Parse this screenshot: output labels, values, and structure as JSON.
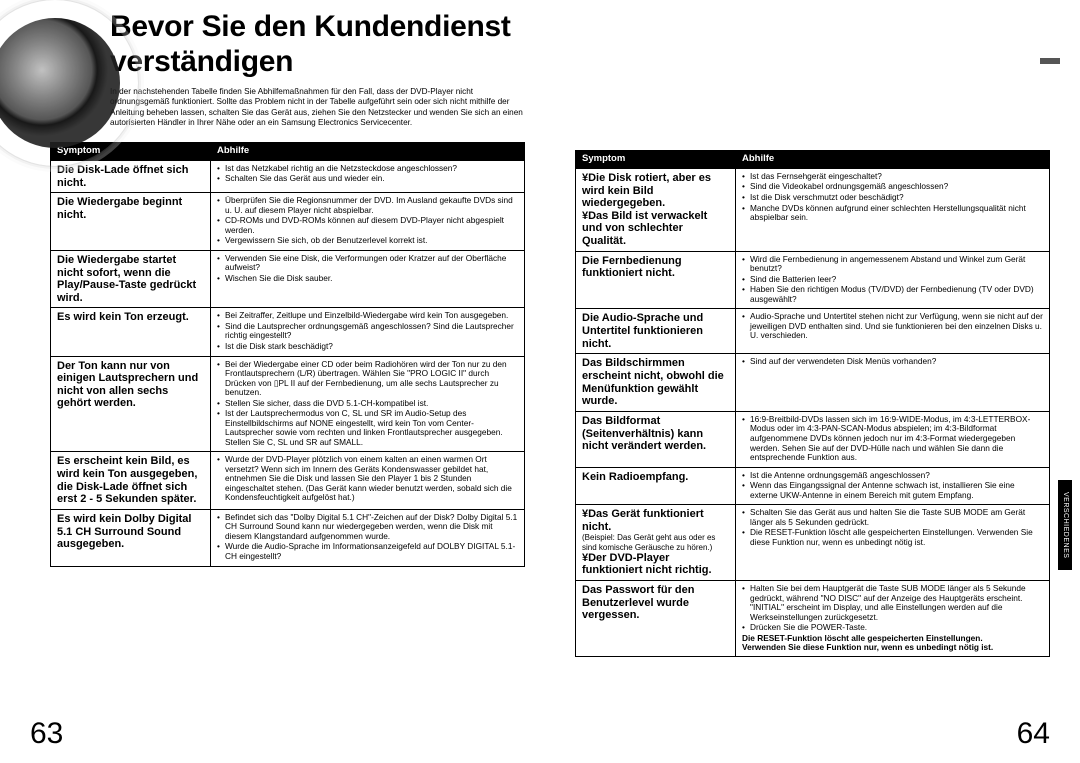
{
  "title": "Bevor Sie den Kundendienst verständigen",
  "intro": "In der nachstehenden Tabelle finden Sie Abhilfemaßnahmen für den Fall, dass der DVD-Player nicht ordnungsgemäß funktioniert. Sollte das Problem nicht in der Tabelle aufgeführt sein oder sich nicht mithilfe der Anleitung beheben lassen, schalten Sie das Gerät aus, ziehen Sie den Netzstecker und wenden Sie sich an einen autorisierten Händler in Ihrer Nähe oder an ein Samsung Electronics Servicecenter.",
  "headers": {
    "symptom": "Symptom",
    "remedy": "Abhilfe"
  },
  "pageLeft": "63",
  "pageRight": "64",
  "sideTab": "VERSCHIEDENES",
  "left": [
    {
      "sym": "Die Disk-Lade öffnet sich nicht.",
      "rem": [
        "Ist das Netzkabel richtig an die Netzsteckdose angeschlossen?",
        "Schalten Sie das Gerät aus und wieder ein."
      ]
    },
    {
      "sym": "Die Wiedergabe beginnt nicht.",
      "rem": [
        "Überprüfen Sie die Regionsnummer der DVD. Im Ausland gekaufte DVDs sind u. U. auf diesem Player nicht abspielbar.",
        "CD-ROMs und DVD-ROMs können auf diesem DVD-Player nicht abgespielt werden.",
        "Vergewissern Sie sich, ob der Benutzerlevel korrekt ist."
      ]
    },
    {
      "sym": "Die Wiedergabe startet nicht sofort, wenn die Play/Pause-Taste gedrückt wird.",
      "rem": [
        "Verwenden Sie eine Disk, die Verformungen oder Kratzer auf der Oberfläche aufweist?",
        "Wischen Sie die Disk sauber."
      ]
    },
    {
      "sym": "Es wird kein Ton erzeugt.",
      "rem": [
        "Bei Zeitraffer, Zeitlupe und Einzelbild-Wiedergabe wird kein Ton ausgegeben.",
        "Sind die Lautsprecher ordnungsgemäß angeschlossen? Sind die Lautsprecher richtig eingestellt?",
        "Ist die Disk stark beschädigt?"
      ]
    },
    {
      "sym": "Der Ton kann nur von einigen Lautsprechern und nicht von allen sechs gehört werden.",
      "rem": [
        "Bei der Wiedergabe einer CD oder beim Radiohören wird der Ton nur zu den Frontlautsprechern (L/R) übertragen. Wählen Sie \"PRO LOGIC II\" durch Drücken von ▯PL II auf der Fernbedienung, um alle sechs Lautsprecher zu benutzen.",
        "Stellen Sie sicher, dass die DVD 5.1-CH-kompatibel ist.",
        "Ist der Lautsprechermodus von C, SL und SR im Audio-Setup des Einstellbildschirms auf NONE eingestellt, wird kein Ton vom Center-Lautsprecher sowie vom rechten und linken Frontlautsprecher ausgegeben. Stellen Sie C, SL und SR auf SMALL."
      ]
    },
    {
      "sym": "Es erscheint kein Bild, es wird kein Ton ausgegeben, die Disk-Lade öffnet sich erst 2 - 5 Sekunden später.",
      "rem": [
        "Wurde der DVD-Player plötzlich von einem kalten an einen warmen Ort versetzt? Wenn sich im Innern des Geräts Kondenswasser gebildet hat, entnehmen Sie die Disk und lassen Sie den Player 1 bis 2 Stunden eingeschaltet stehen. (Das Gerät kann wieder benutzt werden, sobald sich die Kondensfeuchtigkeit aufgelöst hat.)"
      ]
    },
    {
      "sym": "Es wird kein Dolby Digital 5.1 CH Surround Sound ausgegeben.",
      "rem": [
        "Befindet sich das \"Dolby Digital 5.1 CH\"-Zeichen auf der Disk? Dolby Digital 5.1 CH Surround Sound kann nur wiedergegeben werden, wenn die Disk mit diesem Klangstandard aufgenommen wurde.",
        "Wurde die Audio-Sprache im Informationsanzeigefeld auf DOLBY DIGITAL 5.1-CH eingestellt?"
      ]
    }
  ],
  "right": [
    {
      "sym": "¥Die Disk rotiert, aber es wird kein Bild wiedergegeben.\n¥Das Bild ist verwackelt und von schlechter Qualität.",
      "rem": [
        "Ist das Fernsehgerät eingeschaltet?",
        "Sind die Videokabel ordnungsgemäß angeschlossen?",
        "Ist die Disk verschmutzt oder beschädigt?",
        "Manche DVDs können aufgrund einer schlechten Herstellungsqualität nicht abspielbar sein."
      ]
    },
    {
      "sym": "Die Fernbedienung funktioniert nicht.",
      "rem": [
        "Wird die Fernbedienung in angemessenem Abstand und Winkel zum Gerät benutzt?",
        "Sind die Batterien leer?",
        "Haben Sie den richtigen Modus (TV/DVD) der Fernbedienung (TV oder DVD) ausgewählt?"
      ]
    },
    {
      "sym": "Die Audio-Sprache und Untertitel funktionieren nicht.",
      "rem": [
        "Audio-Sprache und Untertitel stehen nicht zur Verfügung, wenn sie nicht auf der jeweiligen DVD enthalten sind. Und sie funktionieren bei den einzelnen Disks u. U. verschieden."
      ]
    },
    {
      "sym": "Das Bildschirmmen erscheint nicht, obwohl die Menüfunktion gewählt wurde.",
      "rem": [
        "Sind auf der verwendeten Disk Menüs vorhanden?"
      ]
    },
    {
      "sym": "Das Bildformat (Seitenverhältnis) kann nicht verändert werden.",
      "rem": [
        "16:9-Breitbild-DVDs lassen sich im 16:9-WIDE-Modus, im 4:3-LETTERBOX-Modus oder im 4:3-PAN-SCAN-Modus abspielen; im 4:3-Bildformat aufgenommene DVDs können jedoch nur im 4:3-Format wiedergegeben werden. Sehen Sie auf der DVD-Hülle nach und wählen Sie dann die entsprechende Funktion aus."
      ]
    },
    {
      "sym": "Kein Radioempfang.",
      "rem": [
        "Ist die Antenne ordnungsgemäß angeschlossen?",
        "Wenn das Eingangssignal der Antenne schwach ist, installieren Sie eine externe UKW-Antenne in einem Bereich mit gutem Empfang."
      ]
    },
    {
      "sym": "¥Das Gerät funktioniert nicht.\n(Beispiel: Das Gerät geht aus oder es sind komische Geräusche zu hören.)\n¥Der DVD-Player funktioniert nicht richtig.",
      "rem": [
        "Schalten Sie das Gerät aus und halten Sie die Taste SUB MODE am Gerät länger als 5 Sekunden gedrückt.",
        "Die RESET-Funktion löscht alle gespeicherten Einstellungen. Verwenden Sie diese Funktion nur, wenn es unbedingt nötig ist."
      ],
      "symSmall": true
    },
    {
      "sym": "Das Passwort für den Benutzerlevel wurde vergessen.",
      "rem": [
        "Halten Sie bei dem Hauptgerät die Taste SUB MODE länger als 5 Sekunde gedrückt, während \"NO DISC\" auf der Anzeige des Hauptgeräts erscheint. \"INITIAL\" erscheint im Display, und alle Einstellungen werden auf die Werkseinstellungen zurückgesetzt.",
        "Drücken Sie die POWER-Taste."
      ],
      "note": "Die RESET-Funktion löscht alle gespeicherten Einstellungen.\nVerwenden Sie diese Funktion nur, wenn es unbedingt nötig ist."
    }
  ]
}
